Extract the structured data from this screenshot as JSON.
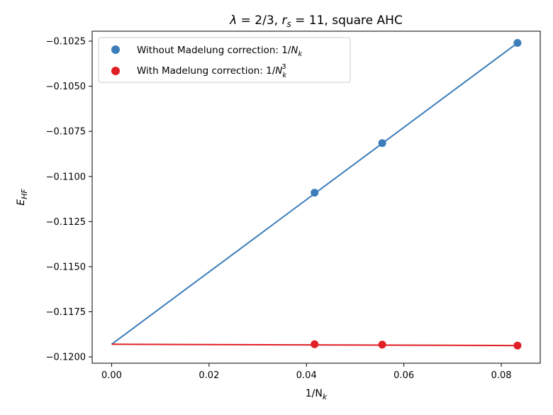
{
  "chart_data": {
    "type": "scatter",
    "title": "λ = 2/3, r_s = 11, square AHC",
    "title_parts": {
      "lambda": "λ",
      "lambda_value": "= 2/3,",
      "r": "r",
      "r_sub": "s",
      "r_value": "= 11,",
      "suffix": "square AHC"
    },
    "xlabel": "1/N_k",
    "xlabel_parts": {
      "main": "1/N",
      "sub": "k"
    },
    "ylabel": "E_HF",
    "ylabel_parts": {
      "main": "E",
      "sub": "HF"
    },
    "xlim": [
      -0.004,
      0.088
    ],
    "ylim": [
      -0.12035,
      -0.10195
    ],
    "xticks": [
      0.0,
      0.02,
      0.04,
      0.06,
      0.08
    ],
    "xtick_labels": [
      "0.00",
      "0.02",
      "0.04",
      "0.06",
      "0.08"
    ],
    "yticks": [
      -0.1025,
      -0.105,
      -0.1075,
      -0.11,
      -0.1125,
      -0.115,
      -0.1175,
      -0.12
    ],
    "ytick_labels": [
      "−0.1025",
      "−0.1050",
      "−0.1075",
      "−0.1100",
      "−0.1125",
      "−0.1150",
      "−0.1175",
      "−0.1200"
    ],
    "grid": false,
    "legend_position": "top-left",
    "series": [
      {
        "name": "Without Madelung correction: 1/N_k",
        "legend_parts": {
          "prefix": "Without Madelung correction: 1/",
          "N": "N",
          "sub": "k",
          "sup": ""
        },
        "color": "#3b7dba",
        "x": [
          0.041667,
          0.055556,
          0.083333
        ],
        "y": [
          -0.1109,
          -0.10815,
          -0.1026
        ],
        "fit_line": {
          "x": [
            0.0,
            0.083333
          ],
          "y": [
            -0.1193,
            -0.1026
          ]
        }
      },
      {
        "name": "With Madelung correction: 1/N_k^3",
        "legend_parts": {
          "prefix": "With Madelung correction: 1/",
          "N": "N",
          "sub": "k",
          "sup": "3"
        },
        "color": "#e02026",
        "x": [
          0.041667,
          0.055556,
          0.083333
        ],
        "y": [
          -0.1193,
          -0.11932,
          -0.11937
        ],
        "fit_line": {
          "x": [
            0.0,
            0.083333
          ],
          "y": [
            -0.1193,
            -0.11937
          ]
        }
      }
    ]
  }
}
